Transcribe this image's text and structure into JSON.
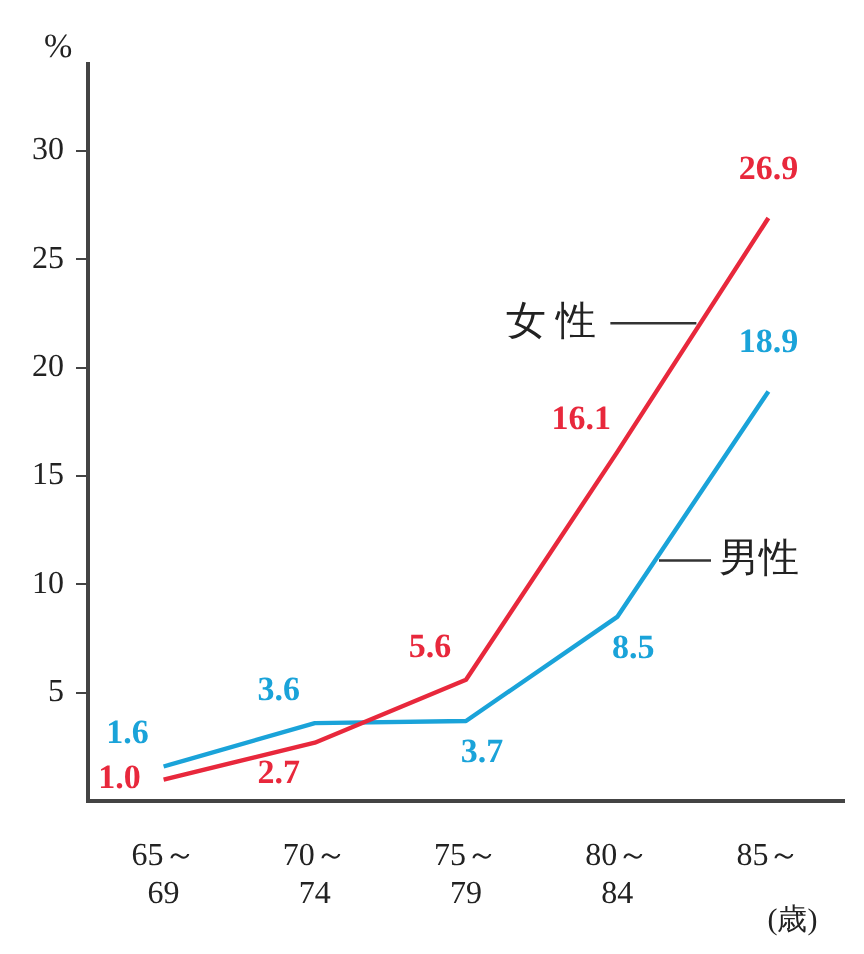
{
  "chart_data": {
    "type": "line",
    "ylabel": "%",
    "xlabel": "(歳)",
    "categories": [
      "65～69",
      "70～74",
      "75～79",
      "80～84",
      "85～"
    ],
    "series": [
      {
        "name": "女 性",
        "color": "#e8283c",
        "values": [
          1.0,
          2.7,
          5.6,
          16.1,
          26.9
        ],
        "value_labels": [
          "1.0",
          "2.7",
          "5.6",
          "16.1",
          "26.9"
        ]
      },
      {
        "name": "男性",
        "color": "#1aa3d9",
        "values": [
          1.6,
          3.6,
          3.7,
          8.5,
          18.9
        ],
        "value_labels": [
          "1.6",
          "3.6",
          "3.7",
          "8.5",
          "18.9"
        ]
      }
    ],
    "ylim": [
      0,
      34
    ],
    "yticks": [
      5,
      10,
      15,
      20,
      25,
      30
    ],
    "grid": false,
    "legend": false,
    "marker": "none",
    "line_style": "solid"
  }
}
